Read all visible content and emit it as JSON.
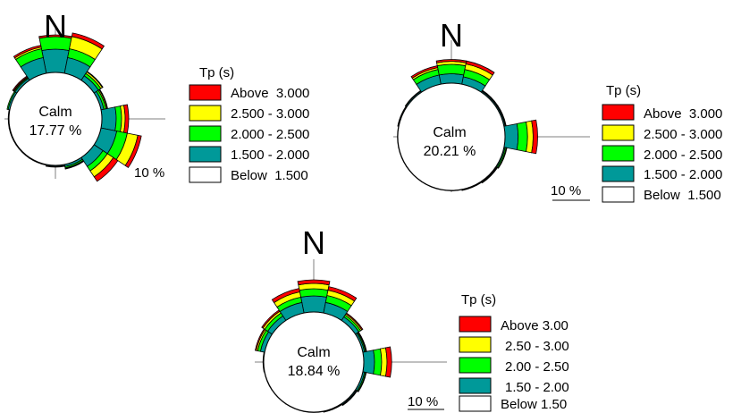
{
  "colors": {
    "band_below": "#ffffff",
    "band_1": "#009999",
    "band_2": "#00ff00",
    "band_3": "#ffff00",
    "band_4": "#ff0000",
    "outline": "#000000",
    "axis": "#808080"
  },
  "chart_data": [
    {
      "type": "wind-rose",
      "north_label": "N",
      "calm_label": "Calm",
      "calm_value": "17.77 %",
      "scale_label": "10 %",
      "legend_title": "Tp (s)",
      "legend": [
        "Above  3.000",
        "2.500 - 3.000",
        "2.000 - 2.500",
        "1.500 - 2.000",
        "Below  1.500"
      ],
      "sector_width_deg": 22.5,
      "sectors": [
        {
          "dir": 0,
          "bands": [
            0,
            6.5,
            3.5,
            0,
            0.5
          ]
        },
        {
          "dir": 22.5,
          "bands": [
            0,
            4.5,
            2.5,
            3.5,
            1
          ]
        },
        {
          "dir": 45,
          "bands": [
            0,
            1.5,
            0.8,
            0.5,
            0.2
          ]
        },
        {
          "dir": 67.5,
          "bands": [
            0,
            0.8,
            0.6,
            0.3,
            0.2
          ]
        },
        {
          "dir": 90,
          "bands": [
            0,
            4,
            1.5,
            1,
            1
          ]
        },
        {
          "dir": 112.5,
          "bands": [
            0,
            4.5,
            3,
            3,
            1
          ]
        },
        {
          "dir": 135,
          "bands": [
            0,
            3,
            1.5,
            2,
            1.5
          ]
        },
        {
          "dir": 157.5,
          "bands": [
            0,
            0.6,
            0.4,
            0.2,
            0.1
          ]
        },
        {
          "dir": 180,
          "bands": [
            0,
            0.3,
            0.2,
            0,
            0
          ]
        },
        {
          "dir": 202.5,
          "bands": [
            0,
            0.2,
            0,
            0,
            0
          ]
        },
        {
          "dir": 225,
          "bands": [
            0,
            0.2,
            0,
            0,
            0
          ]
        },
        {
          "dir": 247.5,
          "bands": [
            0,
            0.2,
            0,
            0,
            0
          ]
        },
        {
          "dir": 270,
          "bands": [
            0,
            0.2,
            0,
            0,
            0
          ]
        },
        {
          "dir": 292.5,
          "bands": [
            0,
            0.5,
            0.3,
            0,
            0
          ]
        },
        {
          "dir": 315,
          "bands": [
            0,
            0.6,
            0.3,
            0.2,
            0.3
          ]
        },
        {
          "dir": 337.5,
          "bands": [
            0,
            4.5,
            2.5,
            0.5,
            0.5
          ]
        }
      ]
    },
    {
      "type": "wind-rose",
      "north_label": "N",
      "calm_label": "Calm",
      "calm_value": "20.21 %",
      "scale_label": "10 %",
      "legend_title": "Tp (s)",
      "legend": [
        "Above  3.000",
        "2.500 - 3.000",
        "2.000 - 2.500",
        "1.500 - 2.000",
        "Below  1.500"
      ],
      "sector_width_deg": 22.5,
      "sectors": [
        {
          "dir": 0,
          "bands": [
            0,
            2.5,
            2.5,
            0.8,
            0.5
          ]
        },
        {
          "dir": 22.5,
          "bands": [
            0,
            2,
            2,
            1.5,
            0.8
          ]
        },
        {
          "dir": 45,
          "bands": [
            0,
            0.3,
            0.2,
            0.1,
            0
          ]
        },
        {
          "dir": 67.5,
          "bands": [
            0,
            0.3,
            0.2,
            0.1,
            0
          ]
        },
        {
          "dir": 90,
          "bands": [
            0,
            3.5,
            2.5,
            1.5,
            1.2
          ]
        },
        {
          "dir": 112.5,
          "bands": [
            0,
            0.3,
            0.3,
            0.2,
            0
          ]
        },
        {
          "dir": 135,
          "bands": [
            0,
            0.2,
            0.2,
            0.1,
            0
          ]
        },
        {
          "dir": 157.5,
          "bands": [
            0,
            0.2,
            0.1,
            0,
            0
          ]
        },
        {
          "dir": 180,
          "bands": [
            0,
            0.1,
            0,
            0,
            0
          ]
        },
        {
          "dir": 202.5,
          "bands": [
            0,
            0.1,
            0,
            0,
            0
          ]
        },
        {
          "dir": 225,
          "bands": [
            0,
            0.1,
            0,
            0,
            0
          ]
        },
        {
          "dir": 247.5,
          "bands": [
            0,
            0.1,
            0,
            0,
            0
          ]
        },
        {
          "dir": 270,
          "bands": [
            0,
            0.1,
            0,
            0,
            0
          ]
        },
        {
          "dir": 292.5,
          "bands": [
            0,
            0.2,
            0.1,
            0,
            0
          ]
        },
        {
          "dir": 315,
          "bands": [
            0,
            0.3,
            0.2,
            0,
            0
          ]
        },
        {
          "dir": 337.5,
          "bands": [
            0,
            2.5,
            1.5,
            0.5,
            0.5
          ]
        }
      ]
    },
    {
      "type": "wind-rose",
      "north_label": "N",
      "calm_label": "Calm",
      "calm_value": "18.84 %",
      "scale_label": "10 %",
      "legend_title": "Tp (s)",
      "legend": [
        "Above 3.00",
        "2.50 - 3.00",
        "2.00 - 2.50",
        "1.50 - 2.00",
        "Below 1.50"
      ],
      "sector_width_deg": 22.5,
      "sectors": [
        {
          "dir": 0,
          "bands": [
            0,
            4.5,
            2,
            1.5,
            1
          ]
        },
        {
          "dir": 22.5,
          "bands": [
            0,
            3,
            2,
            1.5,
            1
          ]
        },
        {
          "dir": 45,
          "bands": [
            0,
            1.2,
            0.6,
            0.4,
            0.3
          ]
        },
        {
          "dir": 67.5,
          "bands": [
            0,
            0.5,
            0.3,
            0.2,
            0.1
          ]
        },
        {
          "dir": 90,
          "bands": [
            0,
            3,
            2,
            1.5,
            1.3
          ]
        },
        {
          "dir": 112.5,
          "bands": [
            0,
            0.5,
            0.3,
            0.2,
            0
          ]
        },
        {
          "dir": 135,
          "bands": [
            0,
            0.3,
            0.2,
            0.1,
            0
          ]
        },
        {
          "dir": 157.5,
          "bands": [
            0,
            0.2,
            0.1,
            0,
            0
          ]
        },
        {
          "dir": 180,
          "bands": [
            0,
            0.1,
            0,
            0,
            0
          ]
        },
        {
          "dir": 202.5,
          "bands": [
            0,
            0.1,
            0,
            0,
            0
          ]
        },
        {
          "dir": 225,
          "bands": [
            0,
            0.1,
            0,
            0,
            0
          ]
        },
        {
          "dir": 247.5,
          "bands": [
            0,
            0.1,
            0,
            0,
            0
          ]
        },
        {
          "dir": 270,
          "bands": [
            0,
            0.2,
            0,
            0,
            0
          ]
        },
        {
          "dir": 292.5,
          "bands": [
            0,
            1.2,
            0.8,
            0.4,
            0.3
          ]
        },
        {
          "dir": 315,
          "bands": [
            0,
            1.5,
            1,
            0.6,
            0.4
          ]
        },
        {
          "dir": 337.5,
          "bands": [
            0,
            3,
            1.5,
            1.5,
            1
          ]
        }
      ]
    }
  ]
}
